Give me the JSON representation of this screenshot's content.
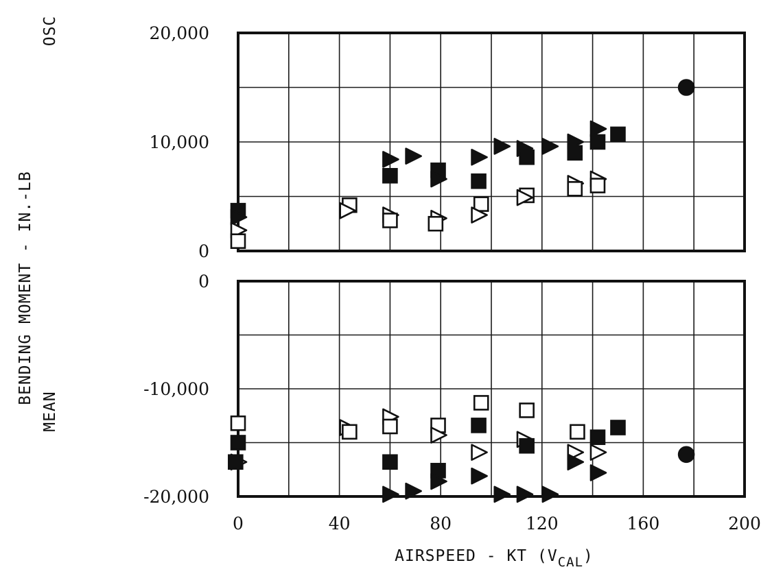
{
  "chart_data": {
    "type": "scatter",
    "y_axis_label": "BENDING MOMENT - IN.-LB",
    "x_axis": {
      "label_main": "AIRSPEED - KT (V",
      "label_sub": "CAL",
      "label_close": ")",
      "range": [
        0,
        200
      ],
      "ticks": [
        "0",
        "40",
        "80",
        "120",
        "160",
        "200"
      ]
    },
    "panels": [
      {
        "label": "OSC",
        "ylim": [
          0,
          20000
        ],
        "ticks": [
          {
            "value": 20000,
            "label": "20,000"
          },
          {
            "value": 10000,
            "label": "10,000"
          },
          {
            "value": 0,
            "label": "0"
          }
        ],
        "points": [
          {
            "marker": "filled-square",
            "x": 0,
            "y": 3700
          },
          {
            "marker": "filled-triangle",
            "x": 0,
            "y": 3100
          },
          {
            "marker": "open-triangle",
            "x": 0,
            "y": 1900
          },
          {
            "marker": "open-square",
            "x": 0,
            "y": 900
          },
          {
            "marker": "open-square",
            "x": 44,
            "y": 4200
          },
          {
            "marker": "open-triangle",
            "x": 43,
            "y": 3700
          },
          {
            "marker": "filled-triangle",
            "x": 60,
            "y": 8400
          },
          {
            "marker": "filled-square",
            "x": 60,
            "y": 6900
          },
          {
            "marker": "open-triangle",
            "x": 60,
            "y": 3300
          },
          {
            "marker": "open-square",
            "x": 60,
            "y": 2800
          },
          {
            "marker": "filled-triangle",
            "x": 69,
            "y": 8700
          },
          {
            "marker": "filled-square",
            "x": 79,
            "y": 7400
          },
          {
            "marker": "filled-triangle",
            "x": 79,
            "y": 6600
          },
          {
            "marker": "open-triangle",
            "x": 79,
            "y": 3000
          },
          {
            "marker": "open-square",
            "x": 78,
            "y": 2500
          },
          {
            "marker": "filled-triangle",
            "x": 95,
            "y": 8600
          },
          {
            "marker": "filled-square",
            "x": 95,
            "y": 6400
          },
          {
            "marker": "open-square",
            "x": 96,
            "y": 4300
          },
          {
            "marker": "open-triangle",
            "x": 95,
            "y": 3300
          },
          {
            "marker": "filled-triangle",
            "x": 104,
            "y": 9600
          },
          {
            "marker": "filled-triangle",
            "x": 113,
            "y": 9400
          },
          {
            "marker": "filled-square",
            "x": 114,
            "y": 8600
          },
          {
            "marker": "open-square",
            "x": 114,
            "y": 5100
          },
          {
            "marker": "open-triangle",
            "x": 113,
            "y": 4900
          },
          {
            "marker": "filled-triangle",
            "x": 123,
            "y": 9600
          },
          {
            "marker": "filled-triangle",
            "x": 133,
            "y": 10000
          },
          {
            "marker": "filled-square",
            "x": 133,
            "y": 9000
          },
          {
            "marker": "open-triangle",
            "x": 133,
            "y": 6200
          },
          {
            "marker": "open-square",
            "x": 133,
            "y": 5700
          },
          {
            "marker": "filled-triangle",
            "x": 142,
            "y": 11200
          },
          {
            "marker": "filled-square",
            "x": 142,
            "y": 10000
          },
          {
            "marker": "open-triangle",
            "x": 142,
            "y": 6600
          },
          {
            "marker": "open-square",
            "x": 142,
            "y": 6000
          },
          {
            "marker": "filled-square",
            "x": 150,
            "y": 10700
          },
          {
            "marker": "filled-circle",
            "x": 177,
            "y": 15000
          }
        ]
      },
      {
        "label": "MEAN",
        "ylim": [
          -20000,
          0
        ],
        "ticks": [
          {
            "value": 0,
            "label": "0"
          },
          {
            "value": -10000,
            "label": "-10,000"
          },
          {
            "value": -20000,
            "label": "-20,000"
          }
        ],
        "points": [
          {
            "marker": "open-square",
            "x": 0,
            "y": -13200
          },
          {
            "marker": "filled-square",
            "x": 0,
            "y": -15000
          },
          {
            "marker": "open-triangle",
            "x": 0,
            "y": -16800
          },
          {
            "marker": "filled-square",
            "x": -1,
            "y": -16800
          },
          {
            "marker": "open-triangle",
            "x": 43,
            "y": -13600
          },
          {
            "marker": "open-square",
            "x": 44,
            "y": -14000
          },
          {
            "marker": "open-triangle",
            "x": 60,
            "y": -12600
          },
          {
            "marker": "open-square",
            "x": 60,
            "y": -13500
          },
          {
            "marker": "filled-square",
            "x": 60,
            "y": -16800
          },
          {
            "marker": "filled-triangle",
            "x": 60,
            "y": -19800
          },
          {
            "marker": "filled-triangle",
            "x": 69,
            "y": -19500
          },
          {
            "marker": "open-square",
            "x": 79,
            "y": -13400
          },
          {
            "marker": "open-triangle",
            "x": 79,
            "y": -14300
          },
          {
            "marker": "filled-square",
            "x": 79,
            "y": -17600
          },
          {
            "marker": "filled-triangle",
            "x": 79,
            "y": -18600
          },
          {
            "marker": "open-square",
            "x": 96,
            "y": -11300
          },
          {
            "marker": "filled-square",
            "x": 95,
            "y": -13400
          },
          {
            "marker": "open-triangle",
            "x": 95,
            "y": -15900
          },
          {
            "marker": "filled-triangle",
            "x": 95,
            "y": -18100
          },
          {
            "marker": "filled-triangle",
            "x": 104,
            "y": -19800
          },
          {
            "marker": "open-square",
            "x": 114,
            "y": -12000
          },
          {
            "marker": "open-triangle",
            "x": 113,
            "y": -14700
          },
          {
            "marker": "filled-square",
            "x": 114,
            "y": -15300
          },
          {
            "marker": "filled-triangle",
            "x": 113,
            "y": -19800
          },
          {
            "marker": "filled-triangle",
            "x": 123,
            "y": -19800
          },
          {
            "marker": "open-square",
            "x": 134,
            "y": -14000
          },
          {
            "marker": "open-triangle",
            "x": 133,
            "y": -15900
          },
          {
            "marker": "filled-triangle",
            "x": 133,
            "y": -16800
          },
          {
            "marker": "filled-square",
            "x": 142,
            "y": -14500
          },
          {
            "marker": "open-triangle",
            "x": 142,
            "y": -15900
          },
          {
            "marker": "filled-triangle",
            "x": 142,
            "y": -17800
          },
          {
            "marker": "filled-square",
            "x": 150,
            "y": -13600
          },
          {
            "marker": "filled-circle",
            "x": 177,
            "y": -16100
          }
        ]
      }
    ],
    "grid": true,
    "legend": "none"
  }
}
